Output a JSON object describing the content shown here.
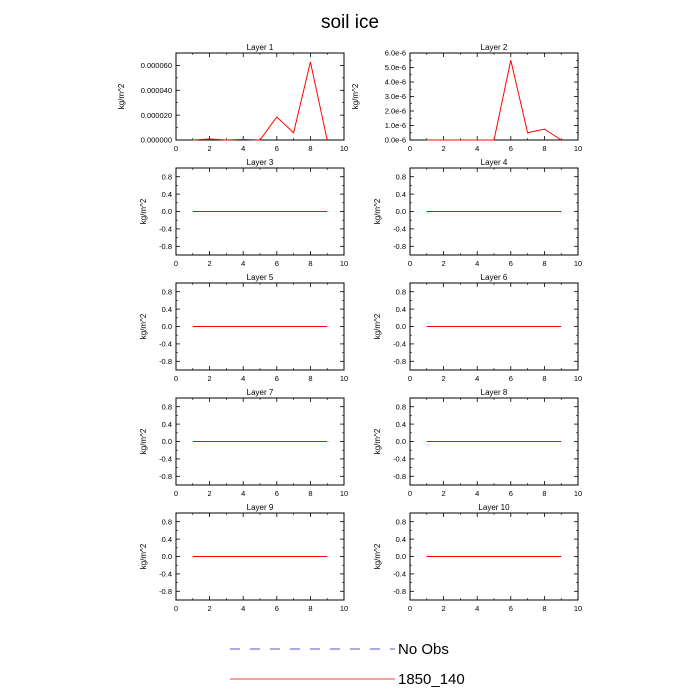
{
  "title": "soil ice",
  "chart_data": {
    "type": "line",
    "panels": [
      {
        "title": "Layer 1",
        "ylabel": "kg/m^2",
        "xlim": [
          0,
          10
        ],
        "ylim": [
          0,
          7e-05
        ],
        "xticks": [
          0,
          2,
          4,
          6,
          8,
          10
        ],
        "yticks": [
          0,
          2e-05,
          4e-05,
          6e-05
        ],
        "ytick_labels": [
          "0.000000",
          "0.000020",
          "0.000040",
          "0.000060"
        ],
        "series": [
          {
            "name": "1850_140",
            "x": [
              1,
              2,
              3,
              4,
              5,
              6,
              7,
              8,
              9
            ],
            "y": [
              0,
              8e-07,
              0,
              5e-07,
              0,
              1.85e-05,
              5.8e-06,
              6.28e-05,
              0
            ]
          }
        ]
      },
      {
        "title": "Layer 2",
        "ylabel": "kg/m^2",
        "xlim": [
          0,
          10
        ],
        "ylim": [
          0,
          6e-06
        ],
        "xticks": [
          0,
          2,
          4,
          6,
          8,
          10
        ],
        "yticks": [
          0,
          1e-06,
          2e-06,
          3e-06,
          4e-06,
          5e-06,
          6e-06
        ],
        "ytick_labels": [
          "0.0e-6",
          "1.0e-6",
          "2.0e-6",
          "3.0e-6",
          "4.0e-6",
          "5.0e-6",
          "6.0e-6"
        ],
        "series": [
          {
            "name": "1850_140",
            "x": [
              1,
              2,
              3,
              4,
              5,
              6,
              7,
              8,
              9
            ],
            "y": [
              0,
              0,
              0,
              0,
              0,
              5.5e-06,
              5e-07,
              7.5e-07,
              0
            ]
          }
        ]
      },
      {
        "title": "Layer 3",
        "ylabel": "kg/m^2",
        "xlim": [
          0,
          10
        ],
        "ylim": [
          -1,
          1
        ],
        "xticks": [
          0,
          2,
          4,
          6,
          8,
          10
        ],
        "yticks": [
          -0.8,
          -0.4,
          0,
          0.4,
          0.8
        ],
        "ytick_labels": [
          "-0.8",
          "-0.4",
          "0.0",
          "0.4",
          "0.8"
        ],
        "series": [
          {
            "name": "1850_140",
            "x": [
              1,
              2,
              3,
              4,
              5,
              6,
              7,
              8,
              9
            ],
            "y": [
              0,
              0,
              0,
              0,
              0,
              0,
              0,
              0,
              0
            ]
          }
        ]
      },
      {
        "title": "Layer 4",
        "ylabel": "kg/m^2",
        "xlim": [
          0,
          10
        ],
        "ylim": [
          -1,
          1
        ],
        "xticks": [
          0,
          2,
          4,
          6,
          8,
          10
        ],
        "yticks": [
          -0.8,
          -0.4,
          0,
          0.4,
          0.8
        ],
        "ytick_labels": [
          "-0.8",
          "-0.4",
          "0.0",
          "0.4",
          "0.8"
        ],
        "series": [
          {
            "name": "1850_140",
            "x": [
              1,
              2,
              3,
              4,
              5,
              6,
              7,
              8,
              9
            ],
            "y": [
              0,
              0,
              0,
              0,
              0,
              0,
              0,
              0,
              0
            ]
          }
        ]
      },
      {
        "title": "Layer 5",
        "ylabel": "kg/m^2",
        "xlim": [
          0,
          10
        ],
        "ylim": [
          -1,
          1
        ],
        "xticks": [
          0,
          2,
          4,
          6,
          8,
          10
        ],
        "yticks": [
          -0.8,
          -0.4,
          0,
          0.4,
          0.8
        ],
        "ytick_labels": [
          "-0.8",
          "-0.4",
          "0.0",
          "0.4",
          "0.8"
        ],
        "series": [
          {
            "name": "1850_140",
            "x": [
              1,
              2,
              3,
              4,
              5,
              6,
              7,
              8,
              9
            ],
            "y": [
              0,
              0,
              0,
              0,
              0,
              0,
              0,
              0,
              0
            ]
          }
        ]
      },
      {
        "title": "Layer 6",
        "ylabel": "kg/m^2",
        "xlim": [
          0,
          10
        ],
        "ylim": [
          -1,
          1
        ],
        "xticks": [
          0,
          2,
          4,
          6,
          8,
          10
        ],
        "yticks": [
          -0.8,
          -0.4,
          0,
          0.4,
          0.8
        ],
        "ytick_labels": [
          "-0.8",
          "-0.4",
          "0.0",
          "0.4",
          "0.8"
        ],
        "series": [
          {
            "name": "1850_140",
            "x": [
              1,
              2,
              3,
              4,
              5,
              6,
              7,
              8,
              9
            ],
            "y": [
              0,
              0,
              0,
              0,
              0,
              0,
              0,
              0,
              0
            ]
          }
        ]
      },
      {
        "title": "Layer 7",
        "ylabel": "kg/m^2",
        "xlim": [
          0,
          10
        ],
        "ylim": [
          -1,
          1
        ],
        "xticks": [
          0,
          2,
          4,
          6,
          8,
          10
        ],
        "yticks": [
          -0.8,
          -0.4,
          0,
          0.4,
          0.8
        ],
        "ytick_labels": [
          "-0.8",
          "-0.4",
          "0.0",
          "0.4",
          "0.8"
        ],
        "series": [
          {
            "name": "1850_140",
            "x": [
              1,
              2,
              3,
              4,
              5,
              6,
              7,
              8,
              9
            ],
            "y": [
              0,
              0,
              0,
              0,
              0,
              0,
              0,
              0,
              0
            ]
          }
        ]
      },
      {
        "title": "Layer 8",
        "ylabel": "kg/m^2",
        "xlim": [
          0,
          10
        ],
        "ylim": [
          -1,
          1
        ],
        "xticks": [
          0,
          2,
          4,
          6,
          8,
          10
        ],
        "yticks": [
          -0.8,
          -0.4,
          0,
          0.4,
          0.8
        ],
        "ytick_labels": [
          "-0.8",
          "-0.4",
          "0.0",
          "0.4",
          "0.8"
        ],
        "series": [
          {
            "name": "1850_140",
            "x": [
              1,
              2,
              3,
              4,
              5,
              6,
              7,
              8,
              9
            ],
            "y": [
              0,
              0,
              0,
              0,
              0,
              0,
              0,
              0,
              0
            ]
          }
        ]
      },
      {
        "title": "Layer 9",
        "ylabel": "kg/m^2",
        "xlim": [
          0,
          10
        ],
        "ylim": [
          -1,
          1
        ],
        "xticks": [
          0,
          2,
          4,
          6,
          8,
          10
        ],
        "yticks": [
          -0.8,
          -0.4,
          0,
          0.4,
          0.8
        ],
        "ytick_labels": [
          "-0.8",
          "-0.4",
          "0.0",
          "0.4",
          "0.8"
        ],
        "series": [
          {
            "name": "1850_140",
            "x": [
              1,
              2,
              3,
              4,
              5,
              6,
              7,
              8,
              9
            ],
            "y": [
              0,
              0,
              0,
              0,
              0,
              0,
              0,
              0,
              0
            ]
          }
        ]
      },
      {
        "title": "Layer 10",
        "ylabel": "kg/m^2",
        "xlim": [
          0,
          10
        ],
        "ylim": [
          -1,
          1
        ],
        "xticks": [
          0,
          2,
          4,
          6,
          8,
          10
        ],
        "yticks": [
          -0.8,
          -0.4,
          0,
          0.4,
          0.8
        ],
        "ytick_labels": [
          "-0.8",
          "-0.4",
          "0.0",
          "0.4",
          "0.8"
        ],
        "series": [
          {
            "name": "1850_140",
            "x": [
              1,
              2,
              3,
              4,
              5,
              6,
              7,
              8,
              9
            ],
            "y": [
              0,
              0,
              0,
              0,
              0,
              0,
              0,
              0,
              0
            ]
          }
        ]
      }
    ],
    "legend": [
      {
        "label": "No Obs",
        "style": "dashed",
        "color": "#5555cc"
      },
      {
        "label": "1850_140",
        "style": "solid",
        "color": "#ff0000"
      }
    ]
  }
}
